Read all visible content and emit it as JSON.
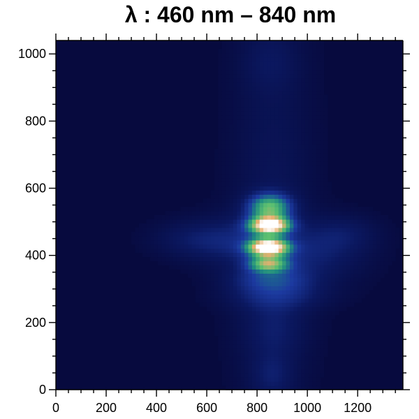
{
  "chart_data": {
    "type": "heatmap",
    "title": "λ  :  460 nm – 840 nm",
    "xlabel": "",
    "ylabel": "",
    "xlim": [
      0,
      1380
    ],
    "ylim": [
      0,
      1040
    ],
    "x_ticks": [
      0,
      200,
      400,
      600,
      800,
      1000,
      1200
    ],
    "x_tick_labels": [
      "0",
      "200",
      "400",
      "600",
      "800",
      "1000",
      "1200"
    ],
    "y_ticks": [
      0,
      200,
      400,
      600,
      800,
      1000
    ],
    "y_tick_labels": [
      "0",
      "200",
      "400",
      "600",
      "800",
      "1000"
    ],
    "colormap": [
      "#070a3e",
      "#0b1860",
      "#1c3aa0",
      "#1f8c80",
      "#5cc070",
      "#e8b070",
      "#ffffff"
    ],
    "background_color": "#070a3e",
    "features": [
      {
        "x": 860,
        "y": 530,
        "sx": 120,
        "sy": 500,
        "v": 0.12
      },
      {
        "x": 850,
        "y": 545,
        "sx": 60,
        "sy": 28,
        "v": 0.55
      },
      {
        "x": 850,
        "y": 490,
        "sx": 55,
        "sy": 18,
        "v": 0.95
      },
      {
        "x": 845,
        "y": 425,
        "sx": 55,
        "sy": 18,
        "v": 1.0
      },
      {
        "x": 845,
        "y": 375,
        "sx": 55,
        "sy": 16,
        "v": 0.55
      },
      {
        "x": 850,
        "y": 330,
        "sx": 110,
        "sy": 25,
        "v": 0.2
      },
      {
        "x": 880,
        "y": 280,
        "sx": 150,
        "sy": 30,
        "v": 0.15
      },
      {
        "x": 1050,
        "y": 400,
        "sx": 140,
        "sy": 60,
        "v": 0.16
      },
      {
        "x": 1150,
        "y": 470,
        "sx": 100,
        "sy": 40,
        "v": 0.12
      },
      {
        "x": 700,
        "y": 440,
        "sx": 130,
        "sy": 55,
        "v": 0.15
      },
      {
        "x": 530,
        "y": 450,
        "sx": 120,
        "sy": 40,
        "v": 0.12
      },
      {
        "x": 870,
        "y": 180,
        "sx": 90,
        "sy": 60,
        "v": 0.1
      },
      {
        "x": 860,
        "y": 40,
        "sx": 60,
        "sy": 50,
        "v": 0.12
      },
      {
        "x": 850,
        "y": 980,
        "sx": 80,
        "sy": 60,
        "v": 0.08
      }
    ]
  }
}
